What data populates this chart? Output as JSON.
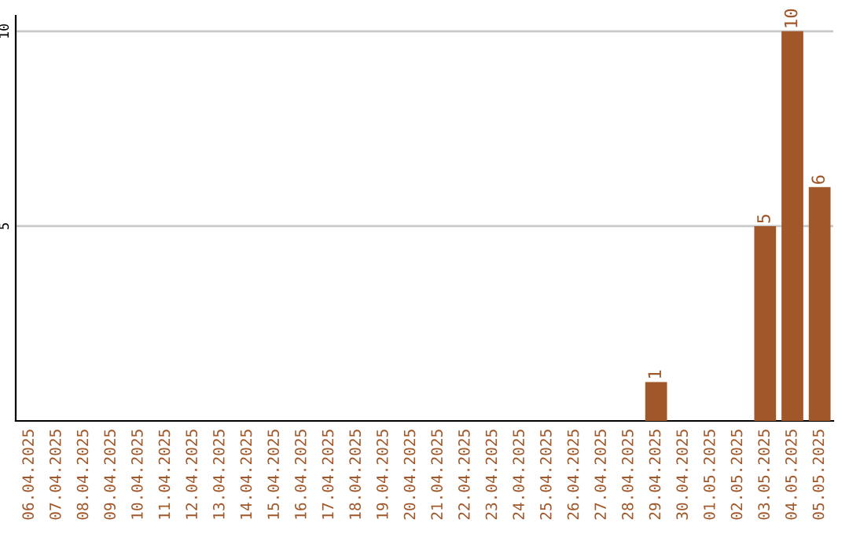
{
  "chart_data": {
    "type": "bar",
    "categories": [
      "06.04.2025",
      "07.04.2025",
      "08.04.2025",
      "09.04.2025",
      "10.04.2025",
      "11.04.2025",
      "12.04.2025",
      "13.04.2025",
      "14.04.2025",
      "15.04.2025",
      "16.04.2025",
      "17.04.2025",
      "18.04.2025",
      "19.04.2025",
      "20.04.2025",
      "21.04.2025",
      "22.04.2025",
      "23.04.2025",
      "24.04.2025",
      "25.04.2025",
      "26.04.2025",
      "27.04.2025",
      "28.04.2025",
      "29.04.2025",
      "30.04.2025",
      "01.05.2025",
      "02.05.2025",
      "03.05.2025",
      "04.05.2025",
      "05.05.2025"
    ],
    "values": [
      0,
      0,
      0,
      0,
      0,
      0,
      0,
      0,
      0,
      0,
      0,
      0,
      0,
      0,
      0,
      0,
      0,
      0,
      0,
      0,
      0,
      0,
      0,
      1,
      0,
      0,
      0,
      5,
      10,
      6
    ],
    "value_labels": [
      null,
      null,
      null,
      null,
      null,
      null,
      null,
      null,
      null,
      null,
      null,
      null,
      null,
      null,
      null,
      null,
      null,
      null,
      null,
      null,
      null,
      null,
      null,
      "1",
      null,
      null,
      null,
      "5",
      "10",
      "6"
    ],
    "color": "#a0582a",
    "ylim": [
      0,
      10.4
    ],
    "yticks": [
      5,
      10
    ],
    "grid": "y"
  }
}
